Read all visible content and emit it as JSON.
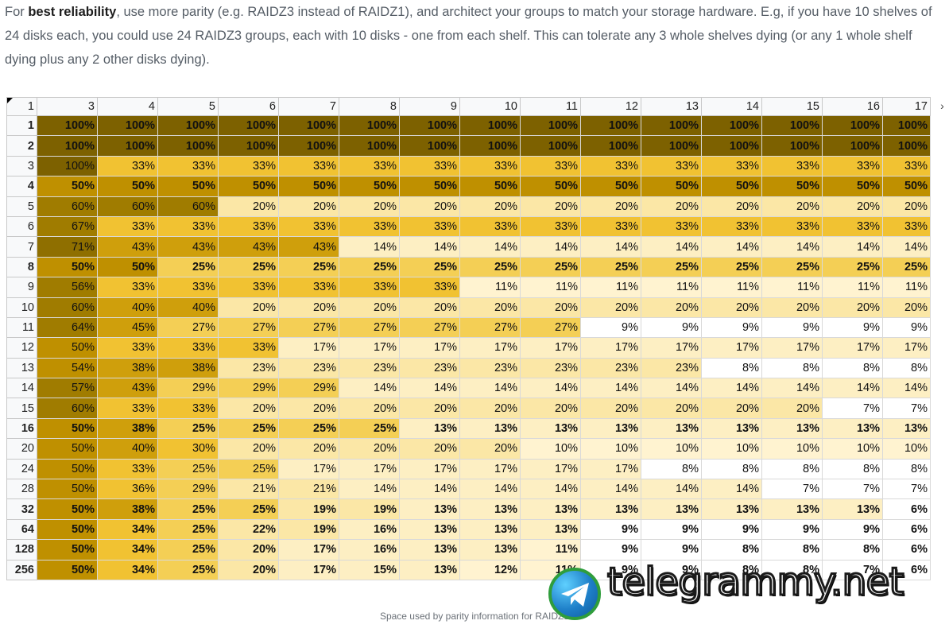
{
  "intro": {
    "prefix": "For ",
    "bold": "best reliability",
    "rest": ", use more parity (e.g. RAIDZ3 instead of RAIDZ1), and architect your groups to match your storage hardware. E.g, if you have 10 shelves of 24 disks each, you could use 24 RAIDZ3 groups, each with 10 disks - one from each shelf. This can tolerate any 3 whole shelves dying (or any 1 whole shelf dying plus any 2 other disks dying)."
  },
  "sheet": {
    "corner_label": "1",
    "column_headers": [
      "3",
      "4",
      "5",
      "6",
      "7",
      "8",
      "9",
      "10",
      "11",
      "12",
      "13",
      "14",
      "15",
      "16",
      "17"
    ],
    "rows": [
      {
        "label": "1",
        "bold": true,
        "values": [
          "100%",
          "100%",
          "100%",
          "100%",
          "100%",
          "100%",
          "100%",
          "100%",
          "100%",
          "100%",
          "100%",
          "100%",
          "100%",
          "100%",
          "100%"
        ]
      },
      {
        "label": "2",
        "bold": true,
        "values": [
          "100%",
          "100%",
          "100%",
          "100%",
          "100%",
          "100%",
          "100%",
          "100%",
          "100%",
          "100%",
          "100%",
          "100%",
          "100%",
          "100%",
          "100%"
        ]
      },
      {
        "label": "3",
        "bold": false,
        "values": [
          "100%",
          "33%",
          "33%",
          "33%",
          "33%",
          "33%",
          "33%",
          "33%",
          "33%",
          "33%",
          "33%",
          "33%",
          "33%",
          "33%",
          "33%"
        ]
      },
      {
        "label": "4",
        "bold": true,
        "values": [
          "50%",
          "50%",
          "50%",
          "50%",
          "50%",
          "50%",
          "50%",
          "50%",
          "50%",
          "50%",
          "50%",
          "50%",
          "50%",
          "50%",
          "50%"
        ]
      },
      {
        "label": "5",
        "bold": false,
        "values": [
          "60%",
          "60%",
          "60%",
          "20%",
          "20%",
          "20%",
          "20%",
          "20%",
          "20%",
          "20%",
          "20%",
          "20%",
          "20%",
          "20%",
          "20%"
        ]
      },
      {
        "label": "6",
        "bold": false,
        "values": [
          "67%",
          "33%",
          "33%",
          "33%",
          "33%",
          "33%",
          "33%",
          "33%",
          "33%",
          "33%",
          "33%",
          "33%",
          "33%",
          "33%",
          "33%"
        ]
      },
      {
        "label": "7",
        "bold": false,
        "values": [
          "71%",
          "43%",
          "43%",
          "43%",
          "43%",
          "14%",
          "14%",
          "14%",
          "14%",
          "14%",
          "14%",
          "14%",
          "14%",
          "14%",
          "14%"
        ]
      },
      {
        "label": "8",
        "bold": true,
        "values": [
          "50%",
          "50%",
          "25%",
          "25%",
          "25%",
          "25%",
          "25%",
          "25%",
          "25%",
          "25%",
          "25%",
          "25%",
          "25%",
          "25%",
          "25%"
        ]
      },
      {
        "label": "9",
        "bold": false,
        "values": [
          "56%",
          "33%",
          "33%",
          "33%",
          "33%",
          "33%",
          "33%",
          "11%",
          "11%",
          "11%",
          "11%",
          "11%",
          "11%",
          "11%",
          "11%"
        ]
      },
      {
        "label": "10",
        "bold": false,
        "values": [
          "60%",
          "40%",
          "40%",
          "20%",
          "20%",
          "20%",
          "20%",
          "20%",
          "20%",
          "20%",
          "20%",
          "20%",
          "20%",
          "20%",
          "20%"
        ]
      },
      {
        "label": "11",
        "bold": false,
        "values": [
          "64%",
          "45%",
          "27%",
          "27%",
          "27%",
          "27%",
          "27%",
          "27%",
          "27%",
          "9%",
          "9%",
          "9%",
          "9%",
          "9%",
          "9%"
        ]
      },
      {
        "label": "12",
        "bold": false,
        "values": [
          "50%",
          "33%",
          "33%",
          "33%",
          "17%",
          "17%",
          "17%",
          "17%",
          "17%",
          "17%",
          "17%",
          "17%",
          "17%",
          "17%",
          "17%"
        ]
      },
      {
        "label": "13",
        "bold": false,
        "values": [
          "54%",
          "38%",
          "38%",
          "23%",
          "23%",
          "23%",
          "23%",
          "23%",
          "23%",
          "23%",
          "23%",
          "8%",
          "8%",
          "8%",
          "8%"
        ]
      },
      {
        "label": "14",
        "bold": false,
        "values": [
          "57%",
          "43%",
          "29%",
          "29%",
          "29%",
          "14%",
          "14%",
          "14%",
          "14%",
          "14%",
          "14%",
          "14%",
          "14%",
          "14%",
          "14%"
        ]
      },
      {
        "label": "15",
        "bold": false,
        "values": [
          "60%",
          "33%",
          "33%",
          "20%",
          "20%",
          "20%",
          "20%",
          "20%",
          "20%",
          "20%",
          "20%",
          "20%",
          "20%",
          "7%",
          "7%"
        ]
      },
      {
        "label": "16",
        "bold": true,
        "values": [
          "50%",
          "38%",
          "25%",
          "25%",
          "25%",
          "25%",
          "13%",
          "13%",
          "13%",
          "13%",
          "13%",
          "13%",
          "13%",
          "13%",
          "13%"
        ]
      },
      {
        "label": "20",
        "bold": false,
        "values": [
          "50%",
          "40%",
          "30%",
          "20%",
          "20%",
          "20%",
          "20%",
          "20%",
          "10%",
          "10%",
          "10%",
          "10%",
          "10%",
          "10%",
          "10%"
        ]
      },
      {
        "label": "24",
        "bold": false,
        "values": [
          "50%",
          "33%",
          "25%",
          "25%",
          "17%",
          "17%",
          "17%",
          "17%",
          "17%",
          "17%",
          "8%",
          "8%",
          "8%",
          "8%",
          "8%"
        ]
      },
      {
        "label": "28",
        "bold": false,
        "values": [
          "50%",
          "36%",
          "29%",
          "21%",
          "21%",
          "14%",
          "14%",
          "14%",
          "14%",
          "14%",
          "14%",
          "14%",
          "7%",
          "7%",
          "7%"
        ]
      },
      {
        "label": "32",
        "bold": true,
        "values": [
          "50%",
          "38%",
          "25%",
          "25%",
          "19%",
          "19%",
          "13%",
          "13%",
          "13%",
          "13%",
          "13%",
          "13%",
          "13%",
          "13%",
          "6%"
        ]
      },
      {
        "label": "64",
        "bold": true,
        "values": [
          "50%",
          "34%",
          "25%",
          "22%",
          "19%",
          "16%",
          "13%",
          "13%",
          "13%",
          "9%",
          "9%",
          "9%",
          "9%",
          "9%",
          "6%"
        ]
      },
      {
        "label": "128",
        "bold": true,
        "values": [
          "50%",
          "34%",
          "25%",
          "20%",
          "17%",
          "16%",
          "13%",
          "13%",
          "11%",
          "9%",
          "9%",
          "8%",
          "8%",
          "8%",
          "6%"
        ]
      },
      {
        "label": "256",
        "bold": true,
        "values": [
          "50%",
          "34%",
          "25%",
          "20%",
          "17%",
          "15%",
          "13%",
          "12%",
          "11%",
          "9%",
          "9%",
          "8%",
          "8%",
          "7%",
          "6%"
        ]
      }
    ],
    "scale_colors": {
      "100": "#7d6100",
      "70": "#8f6f00",
      "60": "#a07c00",
      "50": "#bf9000",
      "40": "#cf9f0c",
      "30": "#f1c232",
      "25": "#f4cf55",
      "20": "#fbe7a6",
      "15": "#fdefc3",
      "11": "#fff3d0",
      "9": "#ffffff"
    }
  },
  "caption": "Space used by parity information for RAIDZ1",
  "watermark": {
    "text": "telegrammy.net",
    "logo_icon": "telegram-paper-plane-icon"
  }
}
